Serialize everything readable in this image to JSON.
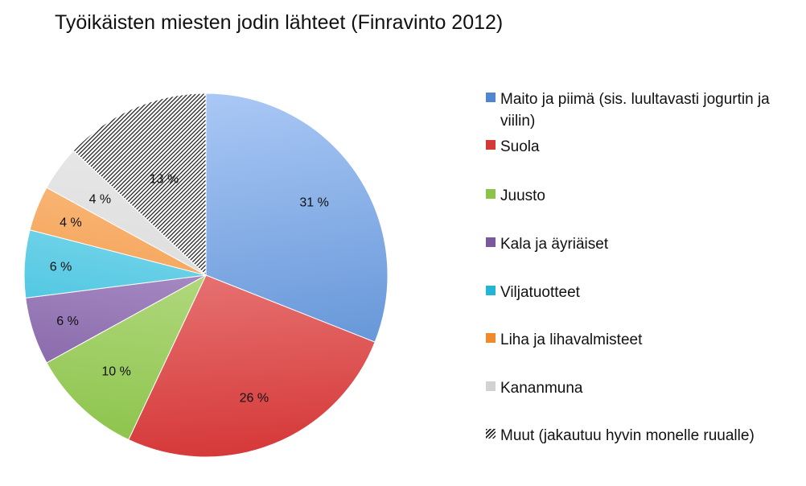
{
  "chart_data": {
    "type": "pie",
    "title": "Työikäisten miesten jodin lähteet (Finravinto 2012)",
    "slices": [
      {
        "name": "Maito ja piimä (sis. luultavasti jogurtin ja viilin)",
        "value": 31,
        "label": "31 %",
        "color": "#4f86cf",
        "color_light": "#aac8f5"
      },
      {
        "name": "Suola",
        "value": 26,
        "label": "26 %",
        "color": "#d63838",
        "color_light": "#f6a9a9"
      },
      {
        "name": "Juusto",
        "value": 10,
        "label": "10 %",
        "color": "#8cc34a",
        "color_light": "#d4ecaf"
      },
      {
        "name": "Kala ja äyriäiset",
        "value": 6,
        "label": "6 %",
        "color": "#7a579e",
        "color_light": "#cdb8e3"
      },
      {
        "name": "Viljatuotteet",
        "value": 6,
        "label": "6 %",
        "color": "#22b5d6",
        "color_light": "#a8e8f6"
      },
      {
        "name": "Liha ja lihavalmisteet",
        "value": 4,
        "label": "4 %",
        "color": "#f08a2a",
        "color_light": "#fcc796"
      },
      {
        "name": "Kananmuna",
        "value": 4,
        "label": "4 %",
        "color": "#d2d2d2",
        "color_light": "#ebebeb"
      },
      {
        "name": "Muut (jakautuu hyvin monelle ruualle)",
        "value": 13,
        "label": "13 %",
        "color": "#ffffff",
        "pattern": "hatch"
      }
    ],
    "legend_position": "right"
  }
}
